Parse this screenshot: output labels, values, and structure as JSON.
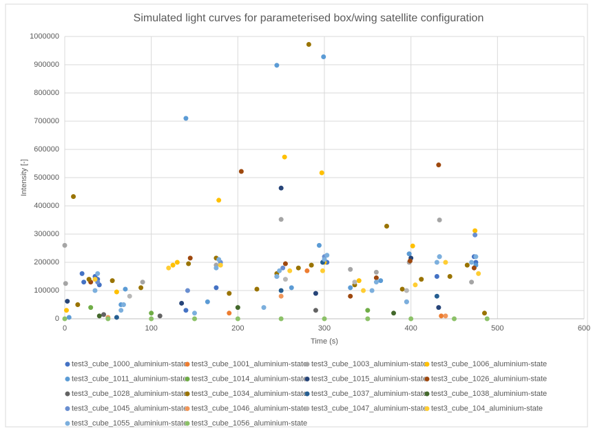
{
  "chart_data": {
    "type": "scatter",
    "title": "Simulated light curves for parameterised box/wing satellite configuration",
    "xlabel": "Time (s)",
    "ylabel": "Intensity [-]",
    "xlim": [
      0,
      600
    ],
    "xticks": [
      0,
      100,
      200,
      300,
      400,
      500,
      600
    ],
    "ylim": [
      0,
      1000000
    ],
    "yticks": [
      0,
      100000,
      200000,
      300000,
      400000,
      500000,
      600000,
      700000,
      800000,
      900000,
      1000000
    ],
    "grid": true,
    "legend": "bottom",
    "series": [
      {
        "name": "test3_cube_1000_aluminium-state",
        "color": "#4472C4",
        "x": [
          20,
          22,
          35,
          38,
          40,
          140,
          175,
          245,
          300,
          303,
          398,
          430,
          473,
          475
        ],
        "values": [
          160000,
          130000,
          150000,
          140000,
          120000,
          30000,
          110000,
          150000,
          210000,
          200000,
          230000,
          150000,
          220000,
          200000
        ]
      },
      {
        "name": "test3_cube_1001_aluminium-state",
        "color": "#ED7D31",
        "x": [
          190,
          280,
          435
        ],
        "values": [
          20000,
          170000,
          10000
        ]
      },
      {
        "name": "test3_cube_1003_aluminium-state",
        "color": "#A5A5A5",
        "x": [
          0,
          1,
          90,
          175,
          250,
          330,
          360,
          398,
          433,
          470
        ],
        "values": [
          260000,
          125000,
          130000,
          190000,
          352000,
          175000,
          165000,
          200000,
          350000,
          130000
        ]
      },
      {
        "name": "test3_cube_1006_aluminium-state",
        "color": "#FFC000",
        "x": [
          2,
          60,
          125,
          130,
          178,
          254,
          297,
          300,
          340,
          402,
          474
        ],
        "values": [
          30000,
          95000,
          190000,
          200000,
          420000,
          573000,
          517000,
          200000,
          135000,
          258000,
          312000
        ]
      },
      {
        "name": "test3_cube_1011_aluminium-state",
        "color": "#5B9BD5",
        "x": [
          5,
          65,
          70,
          140,
          165,
          245,
          262,
          294,
          299,
          330,
          365,
          398,
          433,
          475
        ],
        "values": [
          5000,
          50000,
          105000,
          710000,
          60000,
          898000,
          110000,
          260000,
          928000,
          110000,
          135000,
          230000,
          220000,
          190000
        ]
      },
      {
        "name": "test3_cube_1014_aluminium-state",
        "color": "#70AD47",
        "x": [
          30,
          100,
          350
        ],
        "values": [
          40000,
          20000,
          30000
        ]
      },
      {
        "name": "test3_cube_1015_aluminium-state",
        "color": "#264478",
        "x": [
          3,
          135,
          250,
          290,
          400,
          432
        ],
        "values": [
          62000,
          55000,
          463000,
          90000,
          215000,
          40000
        ]
      },
      {
        "name": "test3_cube_1026_aluminium-state",
        "color": "#9E480E",
        "x": [
          30,
          145,
          204,
          255,
          330,
          360,
          399,
          432,
          473
        ],
        "values": [
          130000,
          215000,
          522000,
          195000,
          80000,
          145000,
          205000,
          545000,
          180000
        ]
      },
      {
        "name": "test3_cube_1028_aluminium-state",
        "color": "#636363",
        "x": [
          45,
          110,
          290
        ],
        "values": [
          15000,
          10000,
          30000
        ]
      },
      {
        "name": "test3_cube_1034_aluminium-state",
        "color": "#997300",
        "x": [
          10,
          15,
          28,
          55,
          88,
          143,
          175,
          190,
          222,
          245,
          270,
          282,
          285,
          335,
          372,
          390,
          412,
          445,
          465,
          485
        ],
        "values": [
          433000,
          50000,
          140000,
          135000,
          110000,
          195000,
          215000,
          90000,
          105000,
          160000,
          180000,
          972000,
          190000,
          120000,
          328000,
          105000,
          140000,
          150000,
          190000,
          20000
        ]
      },
      {
        "name": "test3_cube_1037_aluminium-state",
        "color": "#255E91",
        "x": [
          60,
          250,
          298,
          430
        ],
        "values": [
          5000,
          100000,
          200000,
          80000
        ]
      },
      {
        "name": "test3_cube_1038_aluminium-state",
        "color": "#43682B",
        "x": [
          40,
          200,
          380
        ],
        "values": [
          10000,
          40000,
          20000
        ]
      },
      {
        "name": "test3_cube_1045_aluminium-state",
        "color": "#698ED0",
        "x": [
          38,
          142,
          180,
          252,
          300,
          395,
          474
        ],
        "values": [
          130000,
          100000,
          200000,
          180000,
          220000,
          60000,
          297000
        ]
      },
      {
        "name": "test3_cube_1046_aluminium-state",
        "color": "#F1975A",
        "x": [
          50,
          250,
          440
        ],
        "values": [
          5000,
          80000,
          10000
        ]
      },
      {
        "name": "test3_cube_1047_aluminium-state",
        "color": "#B7B7B7",
        "x": [
          75,
          255,
          335,
          395
        ],
        "values": [
          80000,
          140000,
          130000,
          100000
        ]
      },
      {
        "name": "test3_cube_104_aluminium-state",
        "color": "#FFCD33",
        "x": [
          35,
          120,
          180,
          260,
          298,
          345,
          405,
          440,
          478
        ],
        "values": [
          140000,
          180000,
          190000,
          170000,
          170000,
          100000,
          120000,
          200000,
          160000
        ]
      },
      {
        "name": "test3_cube_1055_aluminium-state",
        "color": "#7CAFDD",
        "x": [
          35,
          38,
          65,
          68,
          150,
          175,
          178,
          230,
          245,
          248,
          300,
          303,
          355,
          360,
          395,
          430,
          433,
          470,
          475
        ],
        "values": [
          100000,
          160000,
          30000,
          50000,
          20000,
          180000,
          210000,
          40000,
          150000,
          170000,
          210000,
          225000,
          100000,
          130000,
          60000,
          200000,
          220000,
          200000,
          220000
        ]
      },
      {
        "name": "test3_cube_1056_aluminium-state",
        "color": "#8CC168",
        "x": [
          0,
          50,
          100,
          150,
          200,
          250,
          300,
          350,
          400,
          450,
          488
        ],
        "values": [
          0,
          0,
          0,
          0,
          0,
          0,
          0,
          0,
          0,
          0,
          0
        ]
      }
    ]
  }
}
